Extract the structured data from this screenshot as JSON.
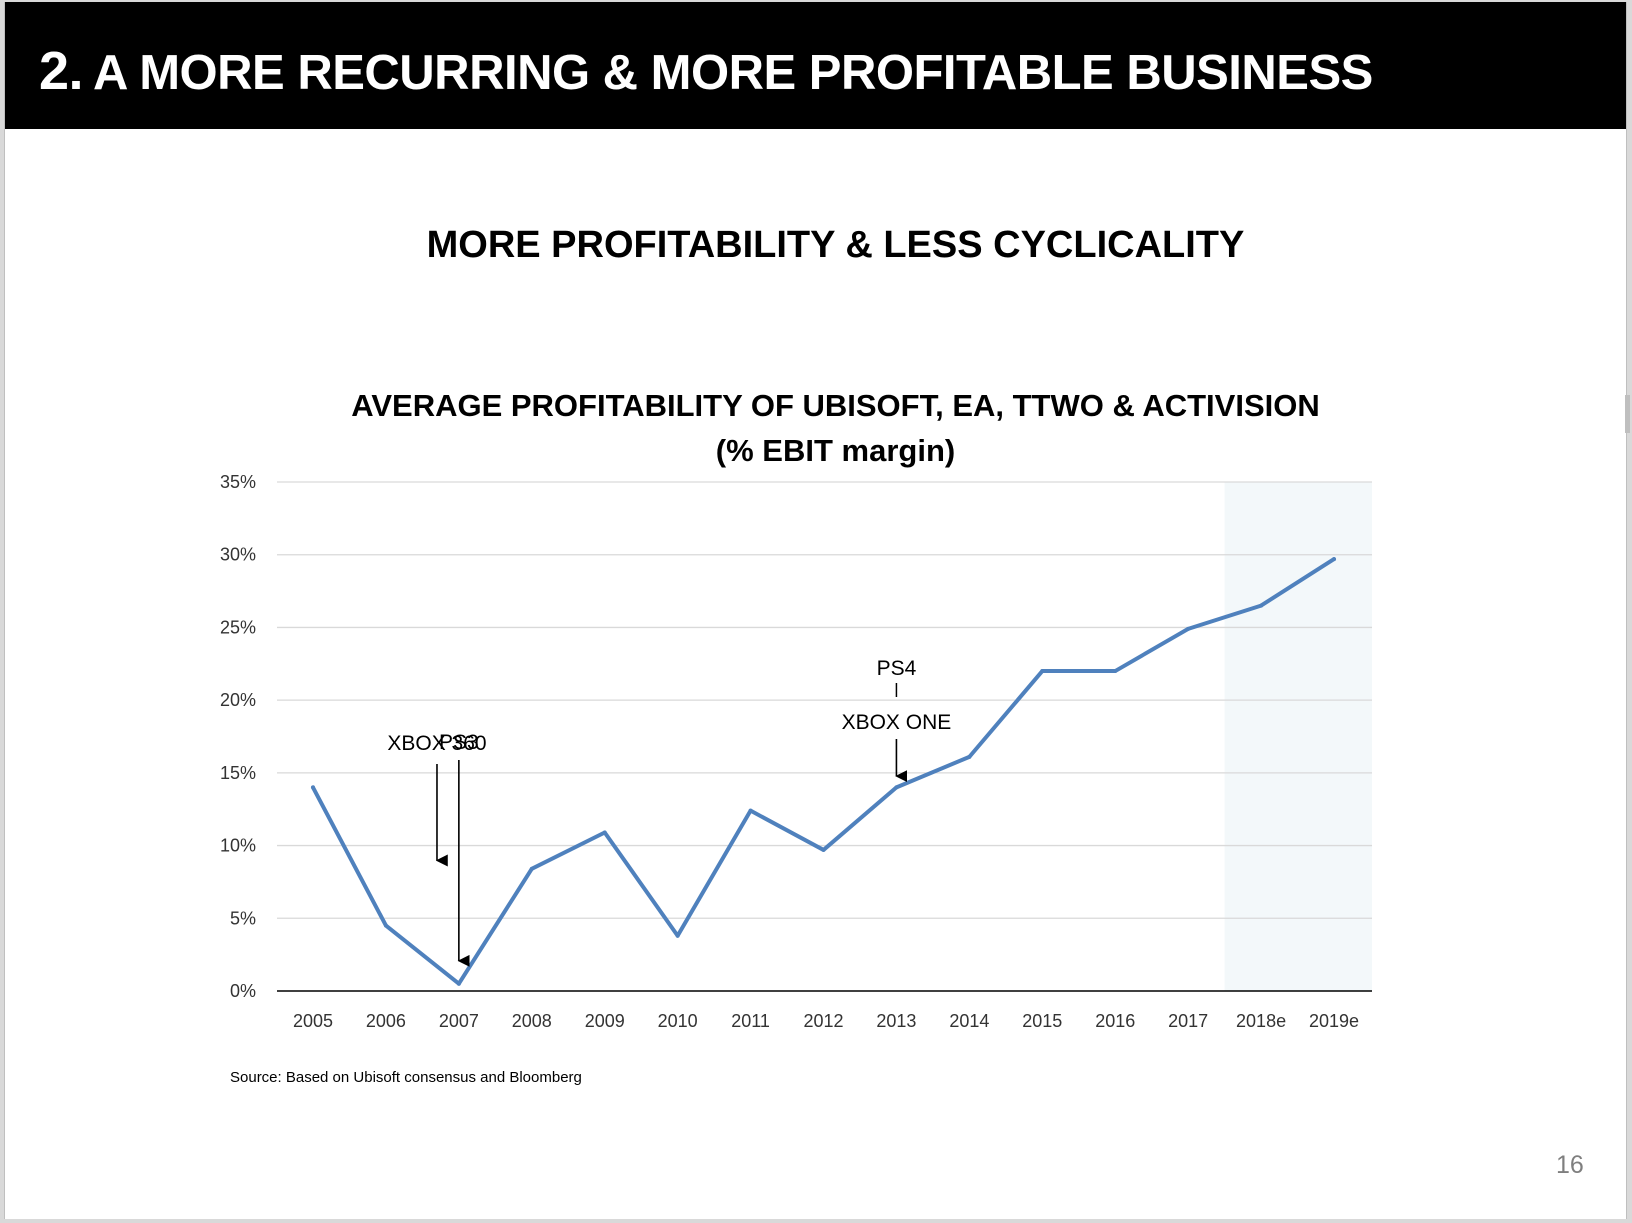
{
  "header": {
    "number": "2.",
    "title": "A MORE RECURRING & MORE PROFITABLE BUSINESS"
  },
  "subtitle": "MORE PROFITABILITY & LESS CYCLICALITY",
  "chart_title_line1": "AVERAGE PROFITABILITY OF UBISOFT, EA, TTWO & ACTIVISION",
  "chart_title_line2": "(% EBIT margin)",
  "source": "Source: Based on Ubisoft consensus and Bloomberg",
  "page_number": "16",
  "colors": {
    "line": "#4f81bd",
    "forecast_shade": "#f3f8fa",
    "grid": "#d9d9d9"
  },
  "chart_data": {
    "type": "line",
    "categories": [
      "2005",
      "2006",
      "2007",
      "2008",
      "2009",
      "2010",
      "2011",
      "2012",
      "2013",
      "2014",
      "2015",
      "2016",
      "2017",
      "2018e",
      "2019e"
    ],
    "values": [
      14.0,
      4.5,
      0.5,
      8.4,
      10.9,
      3.8,
      12.4,
      9.7,
      14.0,
      16.1,
      22.0,
      22.0,
      24.9,
      26.5,
      29.7
    ],
    "ylim": [
      0,
      35
    ],
    "yticks": [
      0,
      5,
      10,
      15,
      20,
      25,
      30,
      35
    ],
    "ytick_labels": [
      "0%",
      "5%",
      "10%",
      "15%",
      "20%",
      "25%",
      "30%",
      "35%"
    ],
    "grid": true,
    "forecast_shaded_categories": [
      "2018e",
      "2019e"
    ],
    "annotations": [
      {
        "label": "XBOX 360",
        "year_position": 1.7,
        "arrow_to_value": 8.7
      },
      {
        "label": "PS3",
        "year_position": 2.0,
        "arrow_to_value": 1.8
      },
      {
        "label": "PS4",
        "year_position": 8.0,
        "connector": true
      },
      {
        "label": "XBOX ONE",
        "year_position": 8.0,
        "arrow_to_value": 14.5
      }
    ]
  }
}
